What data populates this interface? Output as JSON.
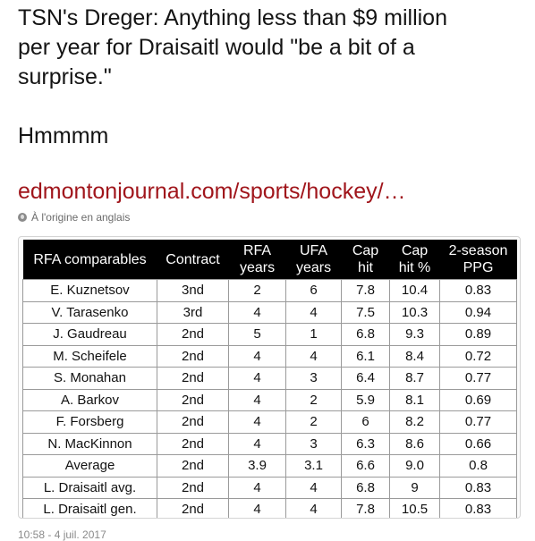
{
  "tweet": {
    "line1": "TSN's Dreger: Anything less than $9 million",
    "line2": "per year for Draisaitl would \"be a bit of a",
    "line3": "surprise.\"",
    "line4": "Hmmmm",
    "link_text": "edmontonjournal.com/sports/hockey/…",
    "translate_label": "À l'origine en anglais",
    "timestamp": "10:58 - 4 juil. 2017"
  },
  "table": {
    "headers": [
      {
        "line1": "RFA comparables",
        "line2": ""
      },
      {
        "line1": "Contract",
        "line2": ""
      },
      {
        "line1": "RFA",
        "line2": "years"
      },
      {
        "line1": "UFA",
        "line2": "years"
      },
      {
        "line1": "Cap",
        "line2": "hit"
      },
      {
        "line1": "Cap",
        "line2": "hit %"
      },
      {
        "line1": "2-season",
        "line2": "PPG"
      }
    ],
    "rows": [
      [
        "E. Kuznetsov",
        "3nd",
        "2",
        "6",
        "7.8",
        "10.4",
        "0.83"
      ],
      [
        "V. Tarasenko",
        "3rd",
        "4",
        "4",
        "7.5",
        "10.3",
        "0.94"
      ],
      [
        "J. Gaudreau",
        "2nd",
        "5",
        "1",
        "6.8",
        "9.3",
        "0.89"
      ],
      [
        "M. Scheifele",
        "2nd",
        "4",
        "4",
        "6.1",
        "8.4",
        "0.72"
      ],
      [
        "S. Monahan",
        "2nd",
        "4",
        "3",
        "6.4",
        "8.7",
        "0.77"
      ],
      [
        "A. Barkov",
        "2nd",
        "4",
        "2",
        "5.9",
        "8.1",
        "0.69"
      ],
      [
        "F. Forsberg",
        "2nd",
        "4",
        "2",
        "6",
        "8.2",
        "0.77"
      ],
      [
        "N. MacKinnon",
        "2nd",
        "4",
        "3",
        "6.3",
        "8.6",
        "0.66"
      ],
      [
        "Average",
        "2nd",
        "3.9",
        "3.1",
        "6.6",
        "9.0",
        "0.8"
      ],
      [
        "L. Draisaitl avg.",
        "2nd",
        "4",
        "4",
        "6.8",
        "9",
        "0.83"
      ],
      [
        "L. Draisaitl gen.",
        "2nd",
        "4",
        "4",
        "7.8",
        "10.5",
        "0.83"
      ]
    ]
  },
  "icons": {
    "translate": "globe-icon"
  },
  "colors": {
    "link": "#a0151b",
    "header_bg": "#000000",
    "header_text": "#ffffff"
  }
}
